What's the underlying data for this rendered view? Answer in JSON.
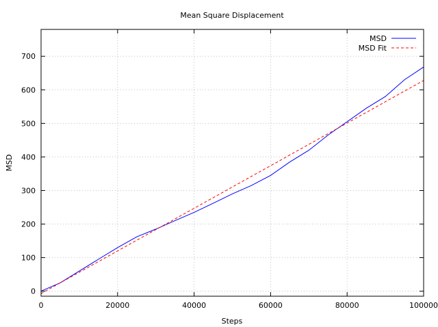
{
  "chart_data": {
    "type": "line",
    "title": "Mean Square Displacement",
    "xlabel": "Steps",
    "ylabel": "MSD",
    "xlim": [
      0,
      100000
    ],
    "ylim": [
      -15,
      780
    ],
    "xticks": [
      0,
      20000,
      40000,
      60000,
      80000,
      100000
    ],
    "yticks": [
      0,
      100,
      200,
      300,
      400,
      500,
      600,
      700
    ],
    "grid": true,
    "legend_position": "top-right",
    "series": [
      {
        "name": "MSD",
        "color": "#0000ff",
        "style": "solid",
        "x": [
          0,
          5000,
          10000,
          15000,
          20000,
          25000,
          30000,
          35000,
          40000,
          45000,
          50000,
          55000,
          60000,
          65000,
          70000,
          75000,
          80000,
          85000,
          90000,
          95000,
          100000
        ],
        "y": [
          0,
          25,
          60,
          95,
          130,
          162,
          185,
          210,
          235,
          262,
          290,
          315,
          345,
          385,
          420,
          465,
          505,
          545,
          580,
          630,
          668
        ]
      },
      {
        "name": "MSD Fit",
        "color": "#ff0000",
        "style": "dashed",
        "x": [
          0,
          100000
        ],
        "y": [
          -7,
          628
        ]
      }
    ]
  }
}
